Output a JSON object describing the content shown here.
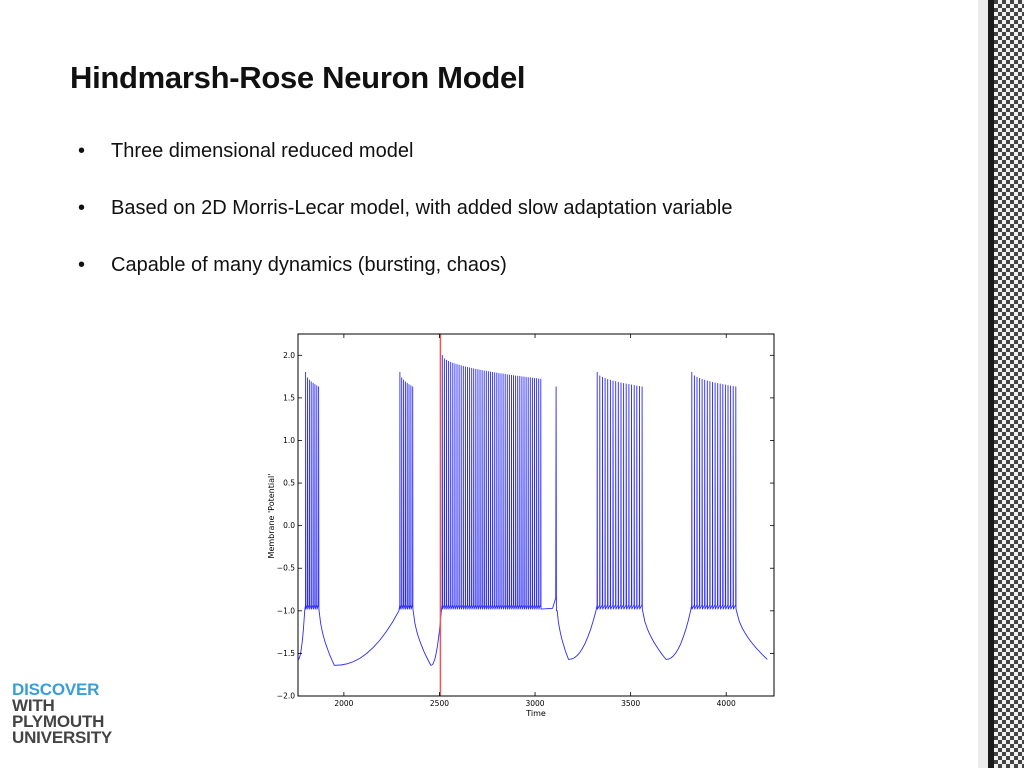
{
  "slide": {
    "title": "Hindmarsh-Rose Neuron Model",
    "bullets": [
      "Three dimensional reduced model",
      "Based on 2D Morris-Lecar model, with added slow adaptation variable",
      "Capable of many dynamics (bursting, chaos)"
    ],
    "bullet_glyph": "•"
  },
  "logo": {
    "lines": [
      "DISCOVER",
      "WITH",
      "PLYMOUTH",
      "UNIVERSITY"
    ],
    "colors": [
      "#3a9fd6",
      "#444444",
      "#444444",
      "#444444"
    ]
  },
  "colors": {
    "trace": "#2a2aff",
    "marker": "#ee5555",
    "axis": "#000000",
    "border_dark": "#1a1a1a"
  },
  "chart_data": {
    "type": "line",
    "title": "",
    "xlabel": "Time",
    "ylabel": "Membrane 'Potential'",
    "xlim": [
      1760,
      4250
    ],
    "ylim": [
      -2.0,
      2.25
    ],
    "xticks": [
      2000,
      2500,
      3000,
      3500,
      4000
    ],
    "xtick_labels": [
      "2000",
      "2500",
      "3000",
      "3500",
      "4000"
    ],
    "yticks": [
      -2.0,
      -1.5,
      -1.0,
      -0.5,
      0.0,
      0.5,
      1.0,
      1.5,
      2.0
    ],
    "ytick_labels": [
      "−2.0",
      "−1.5",
      "−1.0",
      "−0.5",
      "0.0",
      "0.5",
      "1.0",
      "1.5",
      "2.0"
    ],
    "grid": false,
    "marker_x": 2505,
    "baseline": -0.95,
    "bursts": [
      {
        "start": 1800,
        "end": 1868,
        "n": 8,
        "peak_first": 1.8,
        "peak_last": 1.63
      },
      {
        "start": 2293,
        "end": 2360,
        "n": 8,
        "peak_first": 1.8,
        "peak_last": 1.63
      },
      {
        "start": 2515,
        "end": 3030,
        "n": 48,
        "peak_first": 2.0,
        "peak_last": 1.72
      },
      {
        "start": 3110,
        "end": 3110,
        "n": 1,
        "peak_first": 1.63,
        "peak_last": 1.63
      },
      {
        "start": 3325,
        "end": 3560,
        "n": 18,
        "peak_first": 1.8,
        "peak_last": 1.63
      },
      {
        "start": 3820,
        "end": 4050,
        "n": 18,
        "peak_first": 1.8,
        "peak_last": 1.63
      }
    ],
    "troughs": [
      {
        "x": 1760,
        "y": -1.57
      },
      {
        "x": 1950,
        "y": -1.64
      },
      {
        "x": 2455,
        "y": -1.64
      },
      {
        "x": 3175,
        "y": -1.57
      },
      {
        "x": 3685,
        "y": -1.57
      },
      {
        "x": 4215,
        "y": -1.57
      }
    ]
  }
}
